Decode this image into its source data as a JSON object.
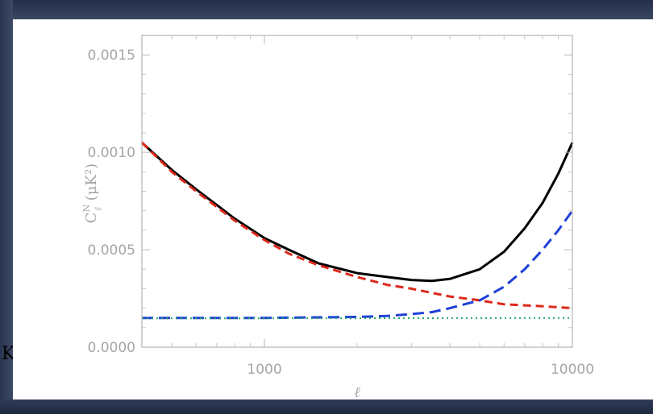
{
  "page": {
    "edge_fragment": "K"
  },
  "chart_data": {
    "type": "line",
    "xscale": "log",
    "xlim": [
      400,
      10000
    ],
    "ylim": [
      0,
      0.0016
    ],
    "xlabel": "ℓ",
    "ylabel": "C",
    "ylabel_sup": "N",
    "ylabel_sub": "ℓ",
    "ylabel_units": "(μK²)",
    "grid": false,
    "legend": "none",
    "x_ticks": [
      {
        "value": 1000,
        "label": "1000"
      },
      {
        "value": 10000,
        "label": "10000"
      }
    ],
    "y_ticks": [
      {
        "value": 0.0,
        "label": "0.0000"
      },
      {
        "value": 0.0005,
        "label": "0.0005"
      },
      {
        "value": 0.001,
        "label": "0.0010"
      },
      {
        "value": 0.0015,
        "label": "0.0015"
      }
    ],
    "series": [
      {
        "style": "solid",
        "color": "#000000",
        "x": [
          400,
          500,
          600,
          700,
          800,
          1000,
          1200,
          1500,
          2000,
          2500,
          3000,
          3500,
          4000,
          5000,
          6000,
          7000,
          8000,
          9000,
          10000
        ],
        "y": [
          0.00105,
          0.00091,
          0.00081,
          0.00073,
          0.00066,
          0.00056,
          0.0005,
          0.00043,
          0.00038,
          0.00036,
          0.000345,
          0.00034,
          0.00035,
          0.0004,
          0.00049,
          0.00061,
          0.00074,
          0.00089,
          0.00105
        ]
      },
      {
        "style": "dashed",
        "color": "#dd2a1b",
        "x": [
          400,
          500,
          600,
          700,
          800,
          1000,
          1200,
          1500,
          2000,
          2500,
          3000,
          4000,
          5000,
          6000,
          8000,
          10000
        ],
        "y": [
          0.00105,
          0.0009,
          0.0008,
          0.00072,
          0.00065,
          0.00055,
          0.00048,
          0.00042,
          0.00036,
          0.00032,
          0.0003,
          0.00026,
          0.00024,
          0.00022,
          0.00021,
          0.0002
        ]
      },
      {
        "style": "long-dash",
        "color": "#2040d8",
        "x": [
          400,
          1000,
          2000,
          2500,
          3000,
          3500,
          4000,
          5000,
          6000,
          7000,
          8000,
          9000,
          10000
        ],
        "y": [
          0.00015,
          0.00015,
          0.000155,
          0.00016,
          0.00017,
          0.00018,
          0.0002,
          0.00024,
          0.00031,
          0.0004,
          0.0005,
          0.0006,
          0.0007
        ]
      },
      {
        "style": "dotted",
        "color": "#22a86a",
        "x": [
          400,
          1000,
          3000,
          10000
        ],
        "y": [
          0.000148,
          0.000148,
          0.000149,
          0.00015
        ]
      }
    ]
  }
}
